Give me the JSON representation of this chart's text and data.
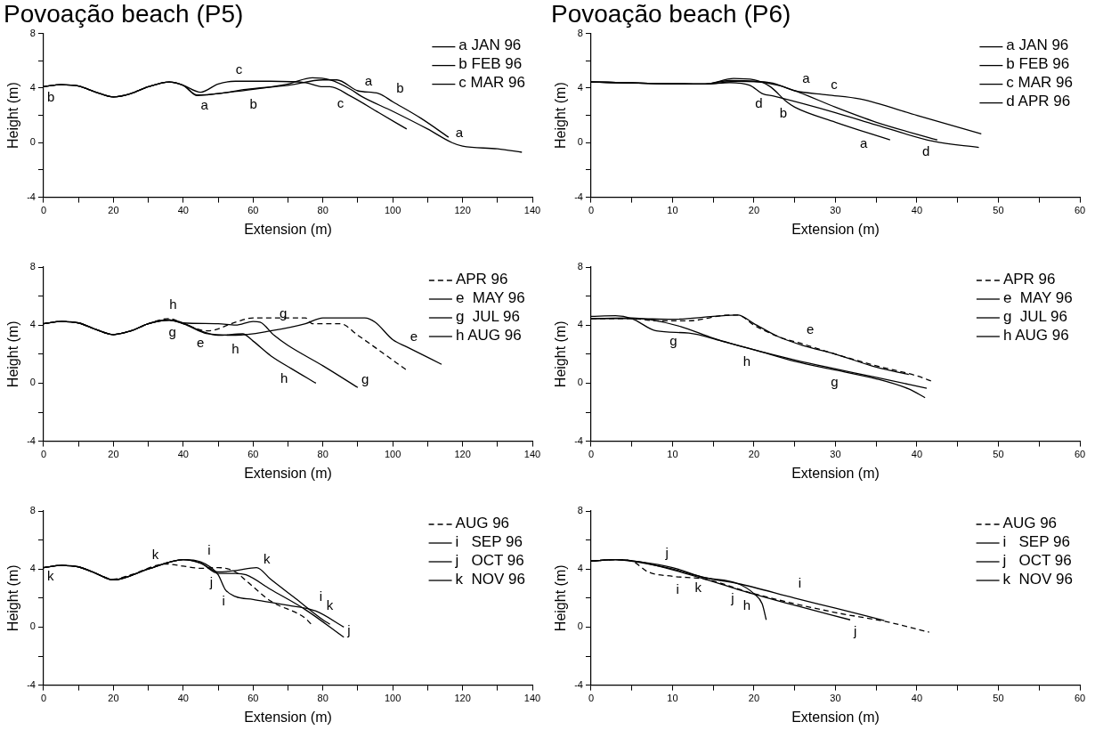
{
  "chart_data": [
    {
      "type": "line",
      "title": "Povoação beach (P5)",
      "xlabel": "Extension (m)",
      "ylabel": "Height (m)",
      "legend": "top right",
      "xlim": [
        0,
        140
      ],
      "ylim": [
        -4,
        8
      ],
      "xticks": [
        0,
        {
          "value": 10,
          "label": null
        },
        20,
        {
          "value": 30,
          "label": null
        },
        40,
        {
          "value": 50,
          "label": null
        },
        60,
        {
          "value": 70,
          "label": null
        },
        80,
        {
          "value": 90,
          "label": null
        },
        100,
        {
          "value": 110,
          "label": null
        },
        120,
        {
          "value": 130,
          "label": null
        },
        140
      ],
      "yticks": [
        -4,
        {
          "value": -2,
          "label": null
        },
        0,
        {
          "value": 2,
          "label": null
        },
        4,
        {
          "value": 6,
          "label": null
        },
        8
      ],
      "series": [
        {
          "name": "a JAN 96",
          "color": "#000000",
          "x": [
            0,
            5,
            10,
            15,
            20,
            25,
            30,
            36,
            40,
            44,
            50,
            60,
            70,
            77,
            82,
            88,
            91,
            100,
            110,
            117,
            120,
            130,
            137
          ],
          "values": [
            4.1,
            4.25,
            4.15,
            3.7,
            3.35,
            3.6,
            4.1,
            4.45,
            4.2,
            3.45,
            3.6,
            3.9,
            4.3,
            4.75,
            4.6,
            3.9,
            3.4,
            2.3,
            1.0,
            0,
            -0.25,
            -0.45,
            -0.7
          ]
        },
        {
          "name": "b FEB 96",
          "color": "#000000",
          "x": [
            0,
            5,
            10,
            15,
            20,
            25,
            30,
            36,
            40,
            44,
            50,
            58,
            70,
            80,
            84,
            90,
            96,
            100,
            108,
            116
          ],
          "values": [
            4.1,
            4.25,
            4.15,
            3.7,
            3.35,
            3.6,
            4.1,
            4.45,
            4.2,
            3.5,
            3.6,
            3.9,
            4.2,
            4.6,
            4.6,
            3.8,
            3.6,
            3.0,
            1.8,
            0.4
          ]
        },
        {
          "name": "c MAR 96",
          "color": "#000000",
          "x": [
            0,
            5,
            10,
            15,
            20,
            25,
            30,
            36,
            40,
            45,
            50,
            55,
            65,
            75,
            80,
            82,
            88,
            96,
            104
          ],
          "values": [
            4.1,
            4.25,
            4.15,
            3.7,
            3.35,
            3.6,
            4.1,
            4.45,
            4.2,
            3.7,
            4.3,
            4.5,
            4.5,
            4.4,
            4.1,
            4.1,
            3.4,
            2.2,
            1.0
          ]
        }
      ],
      "annotations": [
        {
          "text": "a",
          "x": 44,
          "y": 3.4
        },
        {
          "text": "a",
          "x": 91,
          "y": 3.3
        },
        {
          "text": "a",
          "x": 117,
          "y": 0
        },
        {
          "text": "b",
          "x": 58,
          "y": 3.9
        },
        {
          "text": "b",
          "x": 100,
          "y": 2.8
        },
        {
          "text": "c",
          "x": 54,
          "y": 4.2
        },
        {
          "text": "c",
          "x": 87,
          "y": 3.5
        },
        {
          "text": "b",
          "x": 0,
          "y": 4
        }
      ]
    },
    {
      "type": "line",
      "title": "Povoação beach (P6)",
      "xlabel": "Extension (m)",
      "ylabel": "Height (m)",
      "legend": "top right",
      "xlim": [
        0,
        60
      ],
      "ylim": [
        -4,
        8
      ],
      "xticks": [
        0,
        {
          "value": 5,
          "label": null
        },
        10,
        {
          "value": 15,
          "label": null
        },
        20,
        {
          "value": 25,
          "label": null
        },
        30,
        {
          "value": 35,
          "label": null
        },
        40,
        {
          "value": 45,
          "label": null
        },
        50,
        {
          "value": 55,
          "label": null
        },
        60
      ],
      "yticks": [
        -4,
        {
          "value": -2,
          "label": null
        },
        0,
        {
          "value": 2,
          "label": null
        },
        4,
        {
          "value": 6,
          "label": null
        },
        8
      ],
      "series": [
        {
          "name": "a JAN 96",
          "color": "#000000",
          "x": [
            0,
            7,
            14,
            17,
            20,
            23,
            25.5,
            30,
            35,
            42.5
          ],
          "values": [
            4.45,
            4.35,
            4.3,
            4.55,
            4.5,
            4.2,
            3.7,
            2.6,
            1.5,
            0.2
          ]
        },
        {
          "name": "b FEB 96",
          "color": "#000000",
          "x": [
            0,
            7,
            14,
            17.5,
            20,
            22,
            24,
            25,
            30,
            36.7
          ],
          "values": [
            4.45,
            4.35,
            4.3,
            4.7,
            4.6,
            4.1,
            3.0,
            2.6,
            1.5,
            0.2
          ]
        },
        {
          "name": "c MAR 96",
          "color": "#000000",
          "x": [
            0,
            7,
            14,
            18,
            22,
            25,
            29,
            33,
            40,
            47.9
          ],
          "values": [
            4.45,
            4.35,
            4.3,
            4.5,
            4.4,
            3.8,
            3.5,
            3.2,
            2.0,
            0.65
          ]
        },
        {
          "name": "d APR 96",
          "color": "#000000",
          "x": [
            0,
            7,
            14,
            17,
            19.5,
            21,
            22.5,
            30,
            35,
            42,
            47.6
          ],
          "values": [
            4.45,
            4.35,
            4.3,
            4.4,
            4.2,
            3.6,
            3.4,
            2.2,
            1.3,
            0.1,
            -0.35
          ]
        }
      ],
      "annotations": [
        {
          "text": "a",
          "x": 25.5,
          "y": 3.5
        },
        {
          "text": "a",
          "x": 35,
          "y": 1.4
        },
        {
          "text": "b",
          "x": 24.5,
          "y": 2.8
        },
        {
          "text": "c",
          "x": 29,
          "y": 3.5
        },
        {
          "text": "d",
          "x": 21.5,
          "y": 3.5
        },
        {
          "text": "d",
          "x": 42,
          "y": 0
        }
      ]
    },
    {
      "type": "line",
      "xlabel": "Extension (m)",
      "ylabel": "Height (m)",
      "legend": "top right",
      "xlim": [
        0,
        140
      ],
      "ylim": [
        -4,
        8
      ],
      "xticks": [
        0,
        {
          "value": 10,
          "label": null
        },
        20,
        {
          "value": 30,
          "label": null
        },
        40,
        {
          "value": 50,
          "label": null
        },
        60,
        {
          "value": 70,
          "label": null
        },
        80,
        {
          "value": 90,
          "label": null
        },
        100,
        {
          "value": 110,
          "label": null
        },
        120,
        {
          "value": 130,
          "label": null
        },
        140
      ],
      "yticks": [
        -4,
        {
          "value": -2,
          "label": null
        },
        0,
        {
          "value": 2,
          "label": null
        },
        4,
        {
          "value": 6,
          "label": null
        },
        8
      ],
      "series": [
        {
          "name": "APR 96",
          "color": "#000000",
          "line_style": "dashed",
          "x": [
            0,
            5,
            10,
            15,
            20,
            25,
            30,
            36,
            40,
            47,
            55,
            60,
            75,
            77,
            85,
            90,
            104
          ],
          "values": [
            4.1,
            4.25,
            4.15,
            3.7,
            3.35,
            3.6,
            4.1,
            4.45,
            4.1,
            3.6,
            4.2,
            4.5,
            4.5,
            4.1,
            4.1,
            3.3,
            0.9
          ]
        },
        {
          "name": "e  MAY 96",
          "color": "#000000",
          "x": [
            0,
            5,
            10,
            15,
            20,
            25,
            30,
            36,
            40,
            47,
            55,
            65,
            75,
            80,
            92,
            95,
            100,
            104,
            114
          ],
          "values": [
            4.1,
            4.25,
            4.15,
            3.7,
            3.35,
            3.6,
            4.1,
            4.35,
            4.1,
            3.4,
            3.3,
            3.6,
            4.1,
            4.5,
            4.5,
            4.2,
            3.0,
            2.5,
            1.3
          ]
        },
        {
          "name": "g  JUL 96",
          "color": "#000000",
          "x": [
            0,
            5,
            10,
            15,
            20,
            25,
            30,
            36,
            40,
            50,
            55,
            60,
            62,
            66,
            70,
            80,
            90
          ],
          "values": [
            4.1,
            4.25,
            4.15,
            3.7,
            3.35,
            3.6,
            4.1,
            4.35,
            4.15,
            4.1,
            4.0,
            4.25,
            4.2,
            3.3,
            2.6,
            1.2,
            -0.3
          ]
        },
        {
          "name": "h AUG 96",
          "color": "#000000",
          "x": [
            0,
            5,
            10,
            15,
            20,
            25,
            30,
            36,
            40,
            45,
            50,
            57,
            60,
            65,
            71,
            78
          ],
          "values": [
            4.1,
            4.25,
            4.15,
            3.7,
            3.35,
            3.6,
            4.1,
            4.35,
            4.15,
            3.6,
            3.3,
            3.4,
            2.9,
            1.9,
            1.0,
            0
          ]
        }
      ],
      "annotations": [
        {
          "text": "e",
          "x": 47,
          "y": 3.4
        },
        {
          "text": "e",
          "x": 104,
          "y": 2.5
        },
        {
          "text": "g",
          "x": 39,
          "y": 4.1
        },
        {
          "text": "g",
          "x": 65,
          "y": 3.3
        },
        {
          "text": "g",
          "x": 90,
          "y": -0.4
        },
        {
          "text": "h",
          "x": 35,
          "y": 4.3
        },
        {
          "text": "h",
          "x": 57,
          "y": 3.4
        },
        {
          "text": "h",
          "x": 71,
          "y": 0.9
        }
      ]
    },
    {
      "type": "line",
      "xlabel": "Extension (m)",
      "ylabel": "Height (m)",
      "legend": "top right",
      "xlim": [
        0,
        60
      ],
      "ylim": [
        -4,
        8
      ],
      "xticks": [
        0,
        {
          "value": 5,
          "label": null
        },
        10,
        {
          "value": 15,
          "label": null
        },
        20,
        {
          "value": 25,
          "label": null
        },
        30,
        {
          "value": 35,
          "label": null
        },
        40,
        {
          "value": 45,
          "label": null
        },
        50,
        {
          "value": 55,
          "label": null
        },
        60
      ],
      "yticks": [
        -4,
        {
          "value": -2,
          "label": null
        },
        0,
        {
          "value": 2,
          "label": null
        },
        4,
        {
          "value": 6,
          "label": null
        },
        8
      ],
      "series": [
        {
          "name": "APR 96",
          "color": "#000000",
          "line_style": "dashed",
          "x": [
            0,
            5,
            8,
            12,
            17,
            18,
            20,
            23,
            26,
            30,
            35,
            40,
            42
          ],
          "values": [
            4.45,
            4.45,
            4.3,
            4.3,
            4.7,
            4.7,
            4.0,
            3.2,
            2.7,
            2.0,
            1.2,
            0.5,
            0.1
          ]
        },
        {
          "name": "e  MAY 96",
          "color": "#000000",
          "x": [
            0,
            5,
            10,
            15,
            18,
            20,
            23,
            26,
            30,
            35,
            39
          ],
          "values": [
            4.45,
            4.45,
            4.4,
            4.6,
            4.7,
            4.1,
            3.2,
            2.6,
            2.0,
            1.1,
            0.6
          ]
        },
        {
          "name": "g  JUL 96",
          "color": "#000000",
          "x": [
            0,
            5,
            7,
            11,
            15,
            20,
            25,
            29,
            35,
            41.2
          ],
          "values": [
            4.45,
            4.5,
            4.4,
            3.9,
            3.1,
            2.3,
            1.6,
            1.1,
            0.4,
            -0.35
          ]
        },
        {
          "name": "h AUG 96",
          "color": "#000000",
          "x": [
            0,
            3,
            5,
            8,
            12,
            16,
            20,
            25,
            30,
            35,
            39,
            41
          ],
          "values": [
            4.6,
            4.65,
            4.45,
            3.6,
            3.45,
            2.9,
            2.3,
            1.5,
            0.9,
            0.3,
            -0.4,
            -1.0
          ]
        }
      ],
      "annotations": [
        {
          "text": "e",
          "x": 26,
          "y": 2.6
        },
        {
          "text": "g",
          "x": 11,
          "y": 3.9
        },
        {
          "text": "g",
          "x": 29,
          "y": 1.1
        },
        {
          "text": "h",
          "x": 20,
          "y": 2.1
        }
      ]
    },
    {
      "type": "line",
      "xlabel": "Extension (m)",
      "ylabel": "Height (m)",
      "legend": "top right",
      "xlim": [
        0,
        140
      ],
      "ylim": [
        -4,
        8
      ],
      "xticks": [
        0,
        {
          "value": 10,
          "label": null
        },
        20,
        {
          "value": 30,
          "label": null
        },
        40,
        {
          "value": 50,
          "label": null
        },
        60,
        {
          "value": 70,
          "label": null
        },
        80,
        {
          "value": 90,
          "label": null
        },
        100,
        {
          "value": 110,
          "label": null
        },
        120,
        {
          "value": 130,
          "label": null
        },
        140
      ],
      "yticks": [
        -4,
        {
          "value": -2,
          "label": null
        },
        0,
        {
          "value": 2,
          "label": null
        },
        4,
        {
          "value": 6,
          "label": null
        },
        8
      ],
      "series": [
        {
          "name": "AUG 96",
          "color": "#000000",
          "line_style": "dashed",
          "x": [
            0,
            5,
            10,
            15,
            20,
            25,
            35,
            40,
            45,
            50,
            55,
            58,
            65,
            75,
            77
          ],
          "values": [
            4.1,
            4.25,
            4.15,
            3.7,
            3.3,
            3.6,
            4.35,
            4.2,
            4.05,
            4.1,
            3.8,
            3.2,
            1.8,
            0.6,
            0.1
          ]
        },
        {
          "name": "i   SEP 96",
          "color": "#000000",
          "x": [
            0,
            5,
            10,
            15,
            20,
            30,
            40,
            45,
            50,
            52,
            55,
            60,
            70,
            78,
            86
          ],
          "values": [
            4.1,
            4.25,
            4.15,
            3.7,
            3.25,
            4.0,
            4.65,
            4.5,
            3.6,
            2.6,
            2.1,
            1.9,
            1.5,
            1.1,
            0
          ]
        },
        {
          "name": "j   OCT 96",
          "color": "#000000",
          "x": [
            0,
            5,
            10,
            15,
            20,
            30,
            40,
            45,
            50,
            55,
            58,
            65,
            75,
            86
          ],
          "values": [
            4.1,
            4.25,
            4.15,
            3.7,
            3.25,
            4.0,
            4.65,
            4.4,
            3.7,
            3.7,
            3.6,
            2.6,
            1.2,
            -0.7
          ]
        },
        {
          "name": "k  NOV 96",
          "color": "#000000",
          "x": [
            0,
            5,
            10,
            15,
            20,
            30,
            40,
            45,
            50,
            55,
            61,
            65,
            72,
            80,
            82
          ],
          "values": [
            4.1,
            4.25,
            4.15,
            3.7,
            3.25,
            4.0,
            4.65,
            4.4,
            3.8,
            3.9,
            4.1,
            3.3,
            2.0,
            0.5,
            0.2
          ]
        }
      ],
      "annotations": [
        {
          "text": "i",
          "x": 46,
          "y": 4.2
        },
        {
          "text": "i",
          "x": 53,
          "y": 2.4
        },
        {
          "text": "i",
          "x": 78,
          "y": 1.0
        },
        {
          "text": "j",
          "x": 49.5,
          "y": 3.7
        },
        {
          "text": "j",
          "x": 86,
          "y": -0.9
        },
        {
          "text": "k",
          "x": 34,
          "y": 4.3
        },
        {
          "text": "k",
          "x": 62,
          "y": 4.0
        },
        {
          "text": "k",
          "x": 80,
          "y": 0.4
        },
        {
          "text": "k",
          "x": 0,
          "y": 4.1
        }
      ]
    },
    {
      "type": "line",
      "xlabel": "Extension (m)",
      "ylabel": "Height (m)",
      "legend": "top right",
      "xlim": [
        0,
        60
      ],
      "ylim": [
        -4,
        8
      ],
      "xticks": [
        0,
        {
          "value": 5,
          "label": null
        },
        10,
        {
          "value": 15,
          "label": null
        },
        20,
        {
          "value": 25,
          "label": null
        },
        30,
        {
          "value": 35,
          "label": null
        },
        40,
        {
          "value": 45,
          "label": null
        },
        50,
        {
          "value": 55,
          "label": null
        },
        60
      ],
      "yticks": [
        -4,
        {
          "value": -2,
          "label": null
        },
        0,
        {
          "value": 2,
          "label": null
        },
        4,
        {
          "value": 6,
          "label": null
        },
        8
      ],
      "series": [
        {
          "name": "AUG 96",
          "color": "#000000",
          "line_style": "dashed",
          "x": [
            0,
            3,
            5,
            7,
            10,
            14,
            20,
            30,
            36,
            41.5
          ],
          "values": [
            4.55,
            4.65,
            4.55,
            3.8,
            3.5,
            3.3,
            2.3,
            1.0,
            0.4,
            -0.35
          ]
        },
        {
          "name": "i   SEP 96",
          "color": "#000000",
          "x": [
            0,
            3,
            6,
            10,
            14,
            18,
            25,
            30,
            36
          ],
          "values": [
            4.55,
            4.65,
            4.5,
            4.1,
            3.4,
            3.0,
            2.0,
            1.3,
            0.45
          ]
        },
        {
          "name": "j   OCT 96",
          "color": "#000000",
          "x": [
            0,
            3,
            6,
            9,
            14,
            18,
            25,
            31.8
          ],
          "values": [
            4.55,
            4.65,
            4.5,
            4.1,
            3.3,
            2.6,
            1.5,
            0.5
          ]
        },
        {
          "name": "k  NOV 96",
          "color": "#000000",
          "x": [
            0,
            3,
            6,
            10,
            14,
            18,
            20,
            21,
            21.5
          ],
          "values": [
            4.55,
            4.65,
            4.45,
            4.0,
            3.4,
            3.0,
            2.3,
            1.6,
            0.5
          ]
        }
      ],
      "annotations": [
        {
          "text": "i",
          "x": 10,
          "y": 3.6
        },
        {
          "text": "i",
          "x": 25,
          "y": 1.9
        },
        {
          "text": "j",
          "x": 8.7,
          "y": 4.0
        },
        {
          "text": "j",
          "x": 18,
          "y": 2.6
        },
        {
          "text": "j",
          "x": 31.8,
          "y": 0.3
        },
        {
          "text": "k",
          "x": 14,
          "y": 3.3
        },
        {
          "text": "h",
          "x": 20,
          "y": 2.1
        }
      ]
    }
  ]
}
